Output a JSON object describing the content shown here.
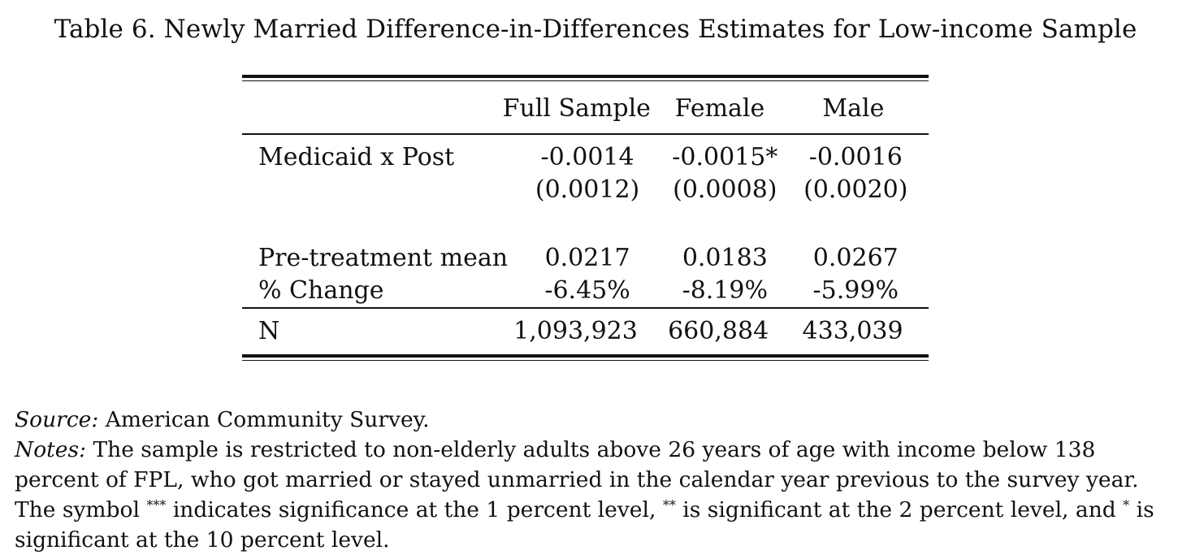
{
  "caption": "Table 6. Newly Married Difference-in-Differences Estimates for Low-income Sample",
  "table": {
    "columns": [
      "Full Sample",
      "Female",
      "Male"
    ],
    "rows": {
      "medicaid_post": {
        "label": "Medicaid x Post",
        "estimates": [
          "-0.0014",
          "-0.0015*",
          "-0.0016"
        ],
        "std_errors": [
          "(0.0012)",
          "(0.0008)",
          "(0.0020)"
        ]
      },
      "pretreatment_mean": {
        "label": "Pre-treatment mean",
        "values": [
          "0.0217",
          "0.0183",
          "0.0267"
        ]
      },
      "pct_change": {
        "label": "% Change",
        "values": [
          "-6.45%",
          "-8.19%",
          "-5.99%"
        ]
      },
      "n": {
        "label": "N",
        "values": [
          "1,093,923",
          "660,884",
          "433,039"
        ]
      }
    }
  },
  "notes": {
    "source_label": "Source:",
    "source_text": "American Community Survey.",
    "notes_label": "Notes:",
    "notes_text_1": "The sample is restricted to non-elderly adults above 26 years of age with income below 138 percent of FPL, who got married or stayed unmarried in the calendar year previous to the survey year. The symbol",
    "sym_3": "***",
    "notes_text_2": "indicates significance at the 1 percent level,",
    "sym_2": "**",
    "notes_text_3": "is significant at the 2 percent level, and",
    "sym_1": "*",
    "notes_text_4": "is significant at the 10 percent level."
  }
}
